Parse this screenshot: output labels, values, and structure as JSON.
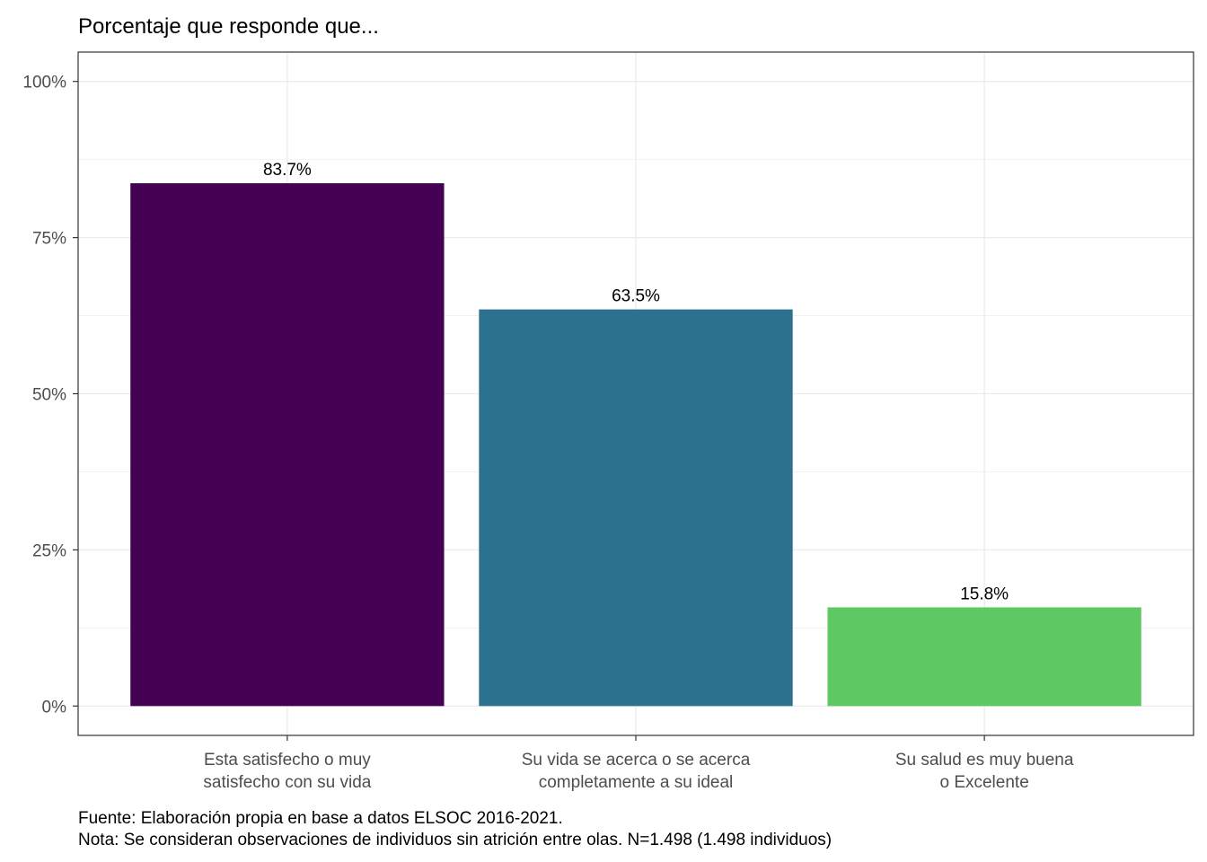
{
  "chart_data": {
    "type": "bar",
    "title": "Porcentaje que responde que...",
    "categories": [
      [
        "Esta satisfecho o muy",
        "satisfecho con su vida"
      ],
      [
        "Su vida se acerca o se acerca",
        "completamente a su ideal"
      ],
      [
        "Su salud es muy buena",
        "o Excelente"
      ]
    ],
    "values": [
      83.7,
      63.5,
      15.8
    ],
    "data_labels": [
      "83.7%",
      "63.5%",
      "15.8%"
    ],
    "colors": [
      "#440154",
      "#2c728e",
      "#5ec962"
    ],
    "yticks": [
      0,
      25,
      50,
      75,
      100
    ],
    "ytick_labels": [
      "0%",
      "25%",
      "50%",
      "75%",
      "100%"
    ],
    "ylim": [
      -4.7,
      104.7
    ],
    "grid": true,
    "legend": "none"
  },
  "caption": {
    "line1": "Fuente: Elaboración propia en base a datos ELSOC 2016-2021.",
    "line2": "Nota: Se consideran observaciones de individuos sin atrición entre olas. N=1.498 (1.498 individuos)"
  }
}
